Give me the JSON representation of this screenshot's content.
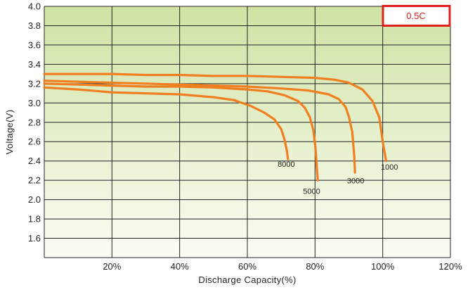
{
  "chart_data": {
    "type": "line",
    "title": "",
    "xlabel": "Discharge Capacity(%)",
    "ylabel": "Voltage(V)",
    "xlim": [
      0,
      120
    ],
    "ylim": [
      1.4,
      4.0
    ],
    "x_ticks": [
      20,
      40,
      60,
      80,
      100,
      120
    ],
    "x_tick_labels": [
      "20%",
      "40%",
      "60%",
      "80%",
      "100%",
      "120%"
    ],
    "y_ticks": [
      1.6,
      1.8,
      2.0,
      2.2,
      2.4,
      2.6,
      2.8,
      3.0,
      3.2,
      3.4,
      3.6,
      3.8,
      4.0
    ],
    "y_tick_labels": [
      "1.6",
      "1.8",
      "2.0",
      "2.2",
      "2.4",
      "2.6",
      "2.8",
      "3.0",
      "3.2",
      "3.4",
      "3.6",
      "3.8",
      "4.0"
    ],
    "grid": true,
    "annotation": "0.5C",
    "colors": {
      "line": "#f07f22",
      "annotation": "#e0201b",
      "background_top": "#cfe3a4",
      "background_bottom": "#fbfdf4",
      "grid": "#222222"
    },
    "series": [
      {
        "label": "1000",
        "label_at": [
          102,
          2.31
        ],
        "x": [
          0,
          10,
          20,
          30,
          40,
          50,
          60,
          70,
          80,
          86,
          90,
          94,
          97,
          99,
          100,
          101
        ],
        "y": [
          3.3,
          3.3,
          3.3,
          3.29,
          3.29,
          3.28,
          3.28,
          3.27,
          3.26,
          3.24,
          3.21,
          3.14,
          3.02,
          2.85,
          2.6,
          2.4
        ]
      },
      {
        "label": "3000",
        "label_at": [
          92,
          2.17
        ],
        "x": [
          0,
          10,
          20,
          30,
          40,
          50,
          60,
          70,
          78,
          84,
          87,
          89,
          90,
          91,
          91.6,
          91.8
        ],
        "y": [
          3.23,
          3.22,
          3.21,
          3.2,
          3.19,
          3.18,
          3.17,
          3.15,
          3.13,
          3.09,
          3.04,
          2.96,
          2.86,
          2.7,
          2.45,
          2.28
        ]
      },
      {
        "label": "5000",
        "label_at": [
          79,
          2.06
        ],
        "x": [
          0,
          10,
          20,
          30,
          40,
          50,
          60,
          66,
          71,
          75,
          77,
          78.5,
          79.5,
          80.1,
          80.5,
          80.8
        ],
        "y": [
          3.2,
          3.19,
          3.18,
          3.17,
          3.17,
          3.16,
          3.14,
          3.12,
          3.08,
          3.02,
          2.95,
          2.85,
          2.72,
          2.55,
          2.35,
          2.2
        ]
      },
      {
        "label": "8000",
        "label_at": [
          71.5,
          2.34
        ],
        "x": [
          0,
          10,
          20,
          30,
          40,
          50,
          56,
          61,
          65,
          68,
          70,
          71,
          71.7,
          72
        ],
        "y": [
          3.16,
          3.14,
          3.11,
          3.1,
          3.09,
          3.06,
          3.03,
          2.97,
          2.9,
          2.83,
          2.73,
          2.62,
          2.5,
          2.42
        ]
      }
    ]
  }
}
